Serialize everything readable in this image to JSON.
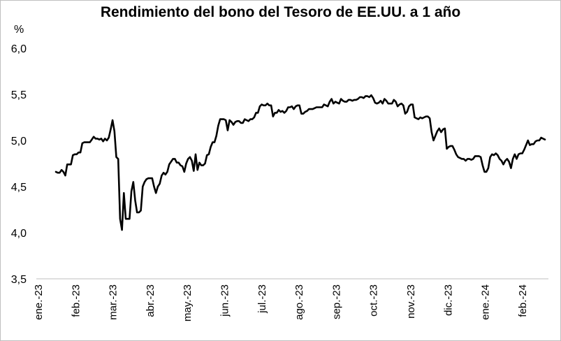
{
  "chart_data": {
    "type": "line",
    "title": "Rendimiento del bono del Tesoro de EE.UU. a 1 año",
    "ylabel": "%",
    "xlabel": "",
    "ylim": [
      3.5,
      6.0
    ],
    "yticks": [
      "3,5",
      "4,0",
      "4,5",
      "5,0",
      "5,5",
      "6,0"
    ],
    "ytick_values": [
      3.5,
      4.0,
      4.5,
      5.0,
      5.5,
      6.0
    ],
    "xticks": [
      "ene.-23",
      "feb.-23",
      "mar.-23",
      "abr.-23",
      "may.-23",
      "jun.-23",
      "jul.-23",
      "ago.-23",
      "sep.-23",
      "oct.-23",
      "nov.-23",
      "dic.-23",
      "ene.-24",
      "feb.-24"
    ],
    "grid": false,
    "legend": "none",
    "color": "#000000",
    "series": [
      {
        "values": [
          4.66,
          4.65,
          4.65,
          4.68,
          4.66,
          4.62,
          4.74,
          4.74,
          4.74,
          4.84,
          4.85,
          4.85,
          4.87,
          4.87,
          4.97,
          4.98,
          4.98,
          4.98,
          4.98,
          5.01,
          5.04,
          5.02,
          5.02,
          5.01,
          5.02,
          4.99,
          5.02,
          5.0,
          5.03,
          5.12,
          5.22,
          5.1,
          4.82,
          4.8,
          4.15,
          4.03,
          4.43,
          4.15,
          4.15,
          4.15,
          4.45,
          4.55,
          4.35,
          4.22,
          4.22,
          4.24,
          4.5,
          4.55,
          4.58,
          4.59,
          4.59,
          4.59,
          4.5,
          4.43,
          4.5,
          4.53,
          4.62,
          4.65,
          4.63,
          4.66,
          4.74,
          4.77,
          4.8,
          4.8,
          4.76,
          4.76,
          4.73,
          4.72,
          4.66,
          4.75,
          4.8,
          4.82,
          4.78,
          4.67,
          4.85,
          4.68,
          4.76,
          4.73,
          4.73,
          4.75,
          4.84,
          4.85,
          4.93,
          4.98,
          4.98,
          5.05,
          5.16,
          5.23,
          5.23,
          5.23,
          5.22,
          5.11,
          5.22,
          5.2,
          5.17,
          5.2,
          5.21,
          5.21,
          5.19,
          5.19,
          5.23,
          5.22,
          5.21,
          5.23,
          5.23,
          5.25,
          5.3,
          5.3,
          5.37,
          5.39,
          5.38,
          5.38,
          5.4,
          5.38,
          5.38,
          5.26,
          5.3,
          5.3,
          5.33,
          5.31,
          5.32,
          5.3,
          5.32,
          5.36,
          5.36,
          5.37,
          5.34,
          5.37,
          5.38,
          5.38,
          5.29,
          5.29,
          5.31,
          5.32,
          5.34,
          5.34,
          5.34,
          5.35,
          5.36,
          5.36,
          5.36,
          5.36,
          5.39,
          5.38,
          5.37,
          5.42,
          5.45,
          5.4,
          5.42,
          5.41,
          5.4,
          5.45,
          5.43,
          5.42,
          5.42,
          5.44,
          5.44,
          5.43,
          5.44,
          5.44,
          5.45,
          5.47,
          5.47,
          5.46,
          5.48,
          5.48,
          5.47,
          5.49,
          5.46,
          5.41,
          5.4,
          5.41,
          5.43,
          5.4,
          5.45,
          5.43,
          5.4,
          5.4,
          5.4,
          5.44,
          5.42,
          5.37,
          5.39,
          5.4,
          5.38,
          5.29,
          5.31,
          5.37,
          5.39,
          5.39,
          5.25,
          5.24,
          5.23,
          5.25,
          5.24,
          5.25,
          5.26,
          5.26,
          5.24,
          5.09,
          5.0,
          5.05,
          5.1,
          5.13,
          5.09,
          5.12,
          5.13,
          4.91,
          4.93,
          4.94,
          4.94,
          4.9,
          4.85,
          4.82,
          4.81,
          4.8,
          4.8,
          4.78,
          4.8,
          4.8,
          4.79,
          4.8,
          4.83,
          4.83,
          4.83,
          4.82,
          4.73,
          4.66,
          4.66,
          4.7,
          4.82,
          4.85,
          4.84,
          4.86,
          4.84,
          4.8,
          4.78,
          4.74,
          4.78,
          4.8,
          4.77,
          4.7,
          4.8,
          4.85,
          4.8,
          4.85,
          4.86,
          4.86,
          4.9,
          4.95,
          5.0,
          4.95,
          4.96,
          4.96,
          4.99,
          5.0,
          5.0,
          5.03,
          5.02,
          5.01
        ]
      }
    ]
  }
}
